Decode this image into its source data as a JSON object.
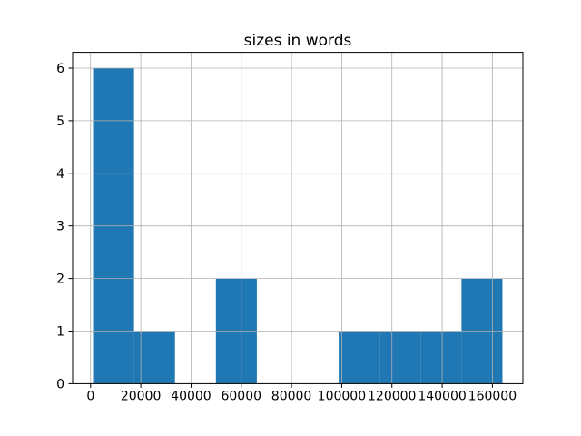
{
  "window": {
    "background": "#ffffff"
  },
  "chart_data": {
    "type": "bar",
    "subtype": "histogram",
    "title": "sizes in words",
    "xlabel": "",
    "ylabel": "",
    "bin_edges": [
      1000,
      17300,
      33600,
      49900,
      66200,
      82500,
      98800,
      115100,
      131400,
      147700,
      164000
    ],
    "counts": [
      6,
      1,
      0,
      2,
      0,
      0,
      1,
      1,
      1,
      2
    ],
    "xlim": [
      -7150,
      172150
    ],
    "ylim": [
      0,
      6.3
    ],
    "xticks": {
      "values": [
        0,
        20000,
        40000,
        60000,
        80000,
        100000,
        120000,
        140000,
        160000
      ],
      "labels": [
        "0",
        "20000",
        "40000",
        "60000",
        "80000",
        "100000",
        "120000",
        "140000",
        "160000"
      ]
    },
    "yticks": {
      "values": [
        0,
        1,
        2,
        3,
        4,
        5,
        6
      ],
      "labels": [
        "0",
        "1",
        "2",
        "3",
        "4",
        "5",
        "6"
      ]
    },
    "grid": true,
    "grid_above_bars": true,
    "legend": false,
    "colors": {
      "bar": "#1f77b4",
      "grid": "#b0b0b0",
      "spine": "#000000",
      "text": "#000000",
      "background": "#ffffff"
    }
  }
}
